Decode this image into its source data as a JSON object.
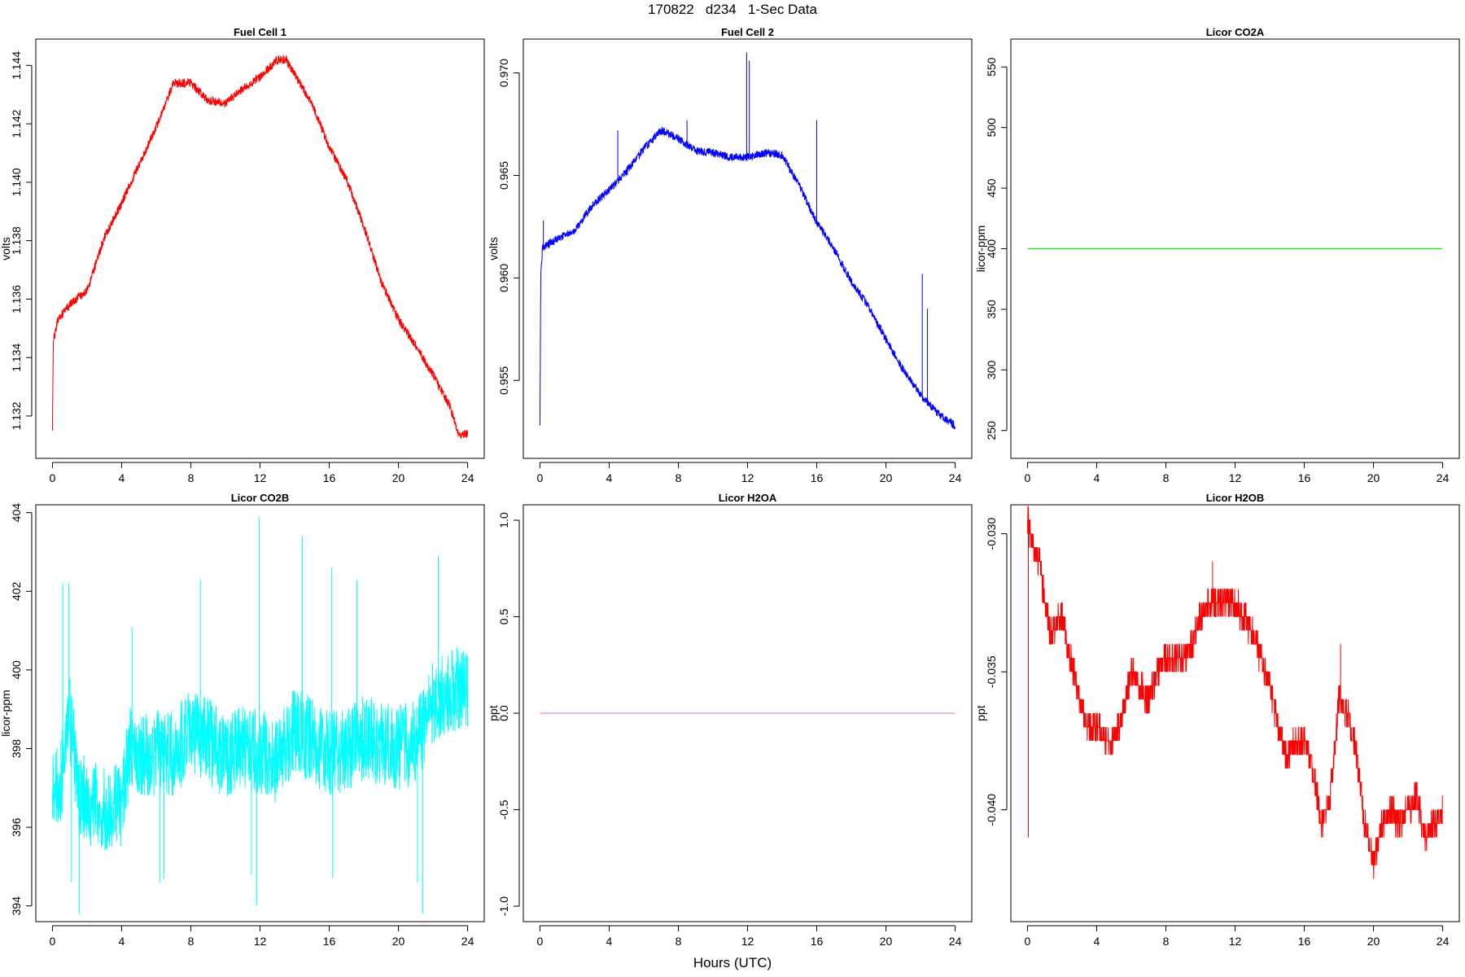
{
  "page_title": "170822   d234   1-Sec Data",
  "shared_xlabel": "Hours (UTC)",
  "chart_data": [
    {
      "type": "line",
      "title": "Fuel Cell 1",
      "ylabel": "volts",
      "color": "#ff0000",
      "xlim": [
        -0.96,
        24.96
      ],
      "ylim": [
        1.13055,
        1.1449
      ],
      "xticks": [
        0,
        4,
        8,
        12,
        16,
        20,
        24
      ],
      "yticks": [
        1.132,
        1.134,
        1.136,
        1.138,
        1.14,
        1.142,
        1.144
      ],
      "ytick_labels": [
        "1.132",
        "1.134",
        "1.136",
        "1.138",
        "1.140",
        "1.142",
        "1.144"
      ],
      "noise": 0.00015,
      "series": [
        {
          "x": [
            0,
            0.05,
            0.3,
            1,
            2,
            3,
            4,
            5,
            6,
            7,
            8,
            9,
            10,
            11,
            12,
            13,
            13.5,
            14.5,
            15,
            16,
            17,
            18,
            19,
            20,
            21,
            22,
            23,
            23.5,
            24
          ],
          "values": [
            1.1315,
            1.1345,
            1.1353,
            1.1358,
            1.1363,
            1.1381,
            1.1393,
            1.1406,
            1.1419,
            1.1434,
            1.1434,
            1.1428,
            1.1427,
            1.1432,
            1.1436,
            1.1442,
            1.1442,
            1.1432,
            1.1427,
            1.1412,
            1.1401,
            1.1385,
            1.1366,
            1.1353,
            1.1344,
            1.1334,
            1.1323,
            1.1313,
            1.1314
          ]
        }
      ]
    },
    {
      "type": "line",
      "title": "Fuel Cell 2",
      "ylabel": "volts",
      "color": "#0000ff",
      "xlim": [
        -0.96,
        24.96
      ],
      "ylim": [
        0.9512,
        0.97165
      ],
      "xticks": [
        0,
        4,
        8,
        12,
        16,
        20,
        24
      ],
      "yticks": [
        0.955,
        0.96,
        0.965,
        0.97
      ],
      "ytick_labels": [
        "0.955",
        "0.960",
        "0.965",
        "0.970"
      ],
      "noise": 0.0002,
      "series": [
        {
          "x": [
            0,
            0.05,
            0.15,
            1,
            2,
            3,
            4,
            5,
            6,
            7,
            8,
            9,
            10,
            11,
            12,
            13,
            14,
            15,
            16,
            17,
            18,
            19,
            20,
            21,
            22,
            23,
            24
          ],
          "values": [
            0.9528,
            0.9602,
            0.9615,
            0.9619,
            0.9623,
            0.9635,
            0.9643,
            0.9652,
            0.9663,
            0.9672,
            0.9668,
            0.9662,
            0.9661,
            0.9659,
            0.9659,
            0.9661,
            0.966,
            0.9645,
            0.9627,
            0.9614,
            0.9598,
            0.9586,
            0.957,
            0.9555,
            0.9543,
            0.9534,
            0.9528
          ]
        }
      ],
      "spikes": [
        {
          "x": 11.95,
          "top": 0.971
        },
        {
          "x": 12.1,
          "top": 0.9706
        },
        {
          "x": 16.0,
          "top": 0.9677
        },
        {
          "x": 22.1,
          "top": 0.9602
        },
        {
          "x": 22.4,
          "top": 0.9585
        },
        {
          "x": 8.5,
          "top": 0.9677
        },
        {
          "x": 4.5,
          "top": 0.9672
        },
        {
          "x": 0.2,
          "top": 0.9628
        }
      ]
    },
    {
      "type": "line",
      "title": "Licor CO2A",
      "ylabel": "licor-ppm",
      "color": "#00ff00",
      "xlim": [
        -0.96,
        24.96
      ],
      "ylim": [
        227,
        573
      ],
      "xticks": [
        0,
        4,
        8,
        12,
        16,
        20,
        24
      ],
      "yticks": [
        250,
        300,
        350,
        400,
        450,
        500,
        550
      ],
      "ytick_labels": [
        "250",
        "300",
        "350",
        "400",
        "450",
        "500",
        "550"
      ],
      "noise": 0,
      "series": [
        {
          "x": [
            0,
            24
          ],
          "values": [
            400,
            400
          ]
        }
      ]
    },
    {
      "type": "line",
      "title": "Licor CO2B",
      "ylabel": "licor-ppm",
      "color": "#00ffff",
      "xlim": [
        -0.96,
        24.96
      ],
      "ylim": [
        393.6,
        404.2
      ],
      "xticks": [
        0,
        4,
        8,
        12,
        16,
        20,
        24
      ],
      "yticks": [
        394,
        396,
        398,
        400,
        402,
        404
      ],
      "ytick_labels": [
        "394",
        "396",
        "398",
        "400",
        "402",
        "404"
      ],
      "noise": 1.1,
      "series": [
        {
          "x": [
            0,
            0.5,
            1,
            1.5,
            2,
            3,
            4,
            4.5,
            5,
            6,
            7,
            8,
            9,
            10,
            11,
            12,
            13,
            14,
            15,
            16,
            17,
            18,
            19,
            20,
            21,
            22,
            23,
            24
          ],
          "values": [
            396.8,
            397.2,
            398.8,
            397.0,
            396.6,
            396.5,
            396.6,
            398.0,
            397.8,
            397.9,
            397.9,
            398.4,
            398.2,
            397.8,
            398.0,
            397.9,
            397.7,
            398.5,
            398.2,
            397.9,
            398.0,
            398.3,
            398.1,
            398.0,
            398.2,
            399.2,
            399.5,
            399.6
          ]
        }
      ],
      "spikes": [
        {
          "x": 0.6,
          "top": 402.2
        },
        {
          "x": 0.95,
          "top": 402.2
        },
        {
          "x": 4.6,
          "top": 401.1
        },
        {
          "x": 8.55,
          "top": 402.3
        },
        {
          "x": 11.95,
          "top": 403.9
        },
        {
          "x": 14.45,
          "top": 403.4
        },
        {
          "x": 16.15,
          "top": 402.6
        },
        {
          "x": 17.6,
          "top": 402.3
        },
        {
          "x": 22.3,
          "top": 402.9
        }
      ],
      "dips": [
        {
          "x": 1.1,
          "bottom": 394.6
        },
        {
          "x": 1.55,
          "bottom": 393.8
        },
        {
          "x": 6.2,
          "bottom": 394.6
        },
        {
          "x": 6.45,
          "bottom": 394.7
        },
        {
          "x": 11.5,
          "bottom": 394.8
        },
        {
          "x": 11.8,
          "bottom": 394.0
        },
        {
          "x": 16.2,
          "bottom": 394.7
        },
        {
          "x": 21.1,
          "bottom": 394.6
        },
        {
          "x": 21.4,
          "bottom": 393.8
        }
      ]
    },
    {
      "type": "line",
      "title": "Licor H2OA",
      "ylabel": "ppt",
      "color": "#ee82ee",
      "xlim": [
        -0.96,
        24.96
      ],
      "ylim": [
        -1.08,
        1.08
      ],
      "xticks": [
        0,
        4,
        8,
        12,
        16,
        20,
        24
      ],
      "yticks": [
        -1,
        -0.5,
        0,
        0.5,
        1
      ],
      "ytick_labels": [
        "-1.0",
        "-0.5",
        "0.0",
        "0.5",
        "1.0"
      ],
      "noise": 0,
      "series": [
        {
          "x": [
            0,
            24
          ],
          "values": [
            0,
            0
          ]
        }
      ]
    },
    {
      "type": "line",
      "title": "Licor H2OB",
      "ylabel": "ppt",
      "color": "#ff0000",
      "xlim": [
        -0.96,
        24.96
      ],
      "ylim": [
        -0.04405,
        -0.02895
      ],
      "xticks": [
        0,
        4,
        8,
        12,
        16,
        20,
        24
      ],
      "yticks": [
        -0.04,
        -0.035,
        -0.03
      ],
      "ytick_labels": [
        "-0.040",
        "-0.035",
        "-0.030"
      ],
      "noise": 0.0005,
      "quantum": 0.0005,
      "series": [
        {
          "x": [
            0,
            0.3,
            0.7,
            1,
            1.3,
            2,
            2.5,
            3,
            3.5,
            4,
            4.5,
            5,
            5.5,
            6,
            6.5,
            7,
            7.5,
            8,
            8.5,
            9,
            9.5,
            10,
            10.5,
            11,
            11.5,
            12,
            12.5,
            13,
            13.5,
            14,
            14.5,
            15,
            15.5,
            16,
            16.5,
            17,
            17.5,
            18,
            18.5,
            19,
            19.5,
            20,
            20.5,
            21,
            21.5,
            22,
            22.5,
            23,
            23.5,
            24
          ],
          "values": [
            -0.0295,
            -0.0305,
            -0.031,
            -0.0325,
            -0.0335,
            -0.033,
            -0.0345,
            -0.036,
            -0.037,
            -0.037,
            -0.0375,
            -0.0375,
            -0.0365,
            -0.035,
            -0.0355,
            -0.036,
            -0.035,
            -0.0345,
            -0.0345,
            -0.0345,
            -0.034,
            -0.033,
            -0.0325,
            -0.0325,
            -0.0325,
            -0.0325,
            -0.033,
            -0.0335,
            -0.0345,
            -0.0355,
            -0.037,
            -0.038,
            -0.0375,
            -0.0375,
            -0.0385,
            -0.0405,
            -0.0395,
            -0.036,
            -0.0365,
            -0.038,
            -0.0405,
            -0.042,
            -0.0405,
            -0.04,
            -0.0405,
            -0.04,
            -0.0395,
            -0.041,
            -0.0405,
            -0.04
          ]
        }
      ],
      "spikes": [
        {
          "x": 0.15,
          "top": -0.0295
        },
        {
          "x": 10.7,
          "top": -0.031
        },
        {
          "x": 18.1,
          "top": -0.034
        }
      ],
      "dips": [
        {
          "x": 0.05,
          "bottom": -0.041
        }
      ]
    }
  ]
}
